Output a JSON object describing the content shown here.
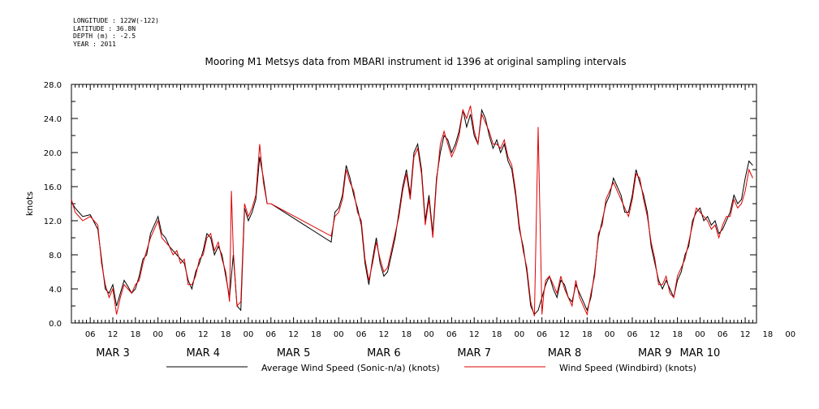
{
  "meta": [
    "LONGITUDE : 122W(-122)",
    "LATITUDE : 36.8N",
    "DEPTH (m) : -2.5",
    "YEAR : 2011"
  ],
  "chart_data": {
    "type": "line",
    "title": "Mooring M1 Metsys data from MBARI instrument id 1396 at original sampling intervals",
    "ylabel": "knots",
    "xlabel": "",
    "ylim": [
      0,
      28
    ],
    "yticks": [
      "0.0",
      "4.0",
      "8.0",
      "12.0",
      "16.0",
      "20.0",
      "24.0",
      "28.0"
    ],
    "xlim_hours": [
      1,
      183
    ],
    "x_unit": "hours since 00:00 MAR 3 2011",
    "hour_ticks": [
      "06",
      "12",
      "18",
      "00",
      "06",
      "12",
      "18",
      "00",
      "06",
      "12",
      "18",
      "00",
      "06",
      "12",
      "18",
      "00",
      "06",
      "12",
      "18",
      "00",
      "06",
      "12",
      "18",
      "00",
      "06",
      "12",
      "18",
      "00",
      "06",
      "12",
      "18",
      "00"
    ],
    "day_labels": [
      "MAR 3",
      "MAR 4",
      "MAR 5",
      "MAR 6",
      "MAR 7",
      "MAR 8",
      "MAR 9",
      "MAR 10"
    ],
    "grid": false,
    "legend_position": "bottom",
    "series": [
      {
        "name": "Average Wind Speed (Sonic-n/a) (knots)",
        "color": "#000000",
        "x": [
          1,
          2,
          4,
          6,
          8,
          9,
          10,
          11,
          12,
          13,
          14,
          15,
          16,
          17,
          18,
          19,
          20,
          21,
          22,
          24,
          25,
          26,
          27,
          28,
          29,
          30,
          31,
          32,
          33,
          34,
          35,
          36,
          37,
          38,
          39,
          40,
          41,
          42,
          43,
          44,
          45,
          46,
          47,
          48,
          49,
          50,
          51,
          52,
          53,
          54,
          70,
          71,
          72,
          73,
          74,
          75,
          76,
          77,
          78,
          79,
          80,
          81,
          82,
          83,
          84,
          85,
          86,
          87,
          88,
          89,
          90,
          91,
          92,
          93,
          94,
          95,
          96,
          97,
          98,
          99,
          100,
          101,
          102,
          103,
          104,
          105,
          106,
          107,
          108,
          109,
          110,
          111,
          112,
          113,
          114,
          115,
          116,
          117,
          118,
          119,
          120,
          121,
          122,
          123,
          124,
          125,
          126,
          127,
          128,
          129,
          130,
          131,
          132,
          133,
          134,
          135,
          136,
          137,
          138,
          139,
          140,
          141,
          142,
          143,
          144,
          145,
          146,
          147,
          148,
          149,
          150,
          151,
          152,
          153,
          154,
          155,
          156,
          157,
          158,
          159,
          160,
          161,
          162,
          163,
          164,
          165,
          166,
          167,
          168,
          169,
          170,
          171,
          172,
          173,
          174,
          175,
          176,
          177,
          178,
          179,
          180,
          181,
          182
        ],
        "values": [
          14.2,
          13.5,
          12.5,
          12.7,
          11.0,
          7.5,
          4.0,
          3.5,
          4.5,
          2.0,
          3.5,
          5.0,
          4.3,
          3.5,
          4.0,
          5.5,
          7.5,
          8.0,
          10.5,
          12.5,
          10.5,
          10.0,
          9.0,
          8.5,
          8.0,
          7.5,
          7.0,
          5.0,
          4.0,
          6.0,
          7.0,
          8.5,
          10.5,
          10.0,
          8.0,
          9.0,
          8.0,
          5.5,
          3.0,
          8.0,
          2.0,
          1.5,
          13.5,
          12.0,
          13.0,
          14.5,
          19.5,
          17.0,
          14.0,
          14.0,
          9.5,
          13.0,
          13.5,
          15.0,
          18.5,
          17.0,
          15.0,
          13.5,
          11.5,
          7.0,
          4.5,
          7.5,
          10.0,
          7.0,
          5.5,
          6.0,
          8.0,
          10.0,
          13.0,
          16.0,
          18.0,
          15.0,
          20.0,
          21.0,
          18.0,
          12.0,
          15.0,
          10.5,
          17.0,
          20.0,
          22.0,
          21.5,
          20.0,
          21.0,
          22.5,
          25.0,
          23.0,
          24.5,
          22.0,
          21.0,
          25.0,
          24.0,
          22.0,
          20.5,
          21.5,
          20.0,
          21.0,
          19.0,
          18.0,
          15.0,
          11.0,
          9.0,
          6.0,
          2.0,
          1.0,
          1.5,
          3.0,
          4.5,
          5.5,
          4.0,
          3.0,
          5.0,
          4.5,
          3.0,
          2.5,
          4.5,
          3.5,
          2.5,
          1.5,
          3.0,
          6.0,
          10.0,
          12.0,
          14.0,
          15.0,
          17.0,
          16.0,
          15.0,
          13.0,
          13.0,
          15.0,
          18.0,
          16.5,
          15.0,
          13.0,
          9.0,
          7.0,
          5.0,
          4.0,
          5.0,
          4.0,
          3.0,
          5.0,
          6.0,
          8.0,
          9.0,
          12.0,
          13.0,
          13.5,
          12.0,
          12.5,
          11.5,
          12.0,
          10.5,
          11.0,
          12.0,
          13.0,
          15.0,
          14.0,
          14.5,
          17.0,
          19.0,
          18.5
        ]
      },
      {
        "name": "Wind Speed (Windbird) (knots)",
        "color": "#e00000",
        "x": [
          1,
          2,
          4,
          6,
          8,
          9,
          10,
          11,
          12,
          13,
          14,
          15,
          16,
          17,
          18,
          19,
          20,
          21,
          22,
          24,
          25,
          26,
          27,
          28,
          29,
          30,
          31,
          32,
          33,
          34,
          35,
          36,
          37,
          38,
          39,
          40,
          41,
          42,
          43,
          43.5,
          44,
          45,
          46,
          47,
          48,
          49,
          50,
          51,
          52,
          53,
          54,
          70,
          71,
          72,
          73,
          74,
          75,
          76,
          77,
          78,
          79,
          80,
          81,
          82,
          83,
          84,
          85,
          86,
          87,
          88,
          89,
          90,
          91,
          92,
          93,
          94,
          95,
          96,
          97,
          98,
          99,
          100,
          101,
          102,
          103,
          104,
          105,
          106,
          107,
          108,
          109,
          110,
          111,
          112,
          113,
          114,
          115,
          116,
          117,
          118,
          119,
          120,
          121,
          122,
          123,
          124,
          125,
          126,
          126.5,
          127,
          128,
          129,
          130,
          131,
          132,
          133,
          134,
          135,
          136,
          137,
          138,
          139,
          140,
          141,
          142,
          143,
          144,
          145,
          146,
          147,
          148,
          149,
          150,
          151,
          152,
          153,
          154,
          155,
          156,
          157,
          158,
          159,
          160,
          161,
          162,
          163,
          164,
          165,
          166,
          167,
          168,
          169,
          170,
          171,
          172,
          173,
          174,
          175,
          176,
          177,
          178,
          179,
          180,
          181,
          182
        ],
        "values": [
          14.5,
          13.0,
          12.0,
          12.5,
          11.5,
          7.0,
          4.5,
          3.0,
          4.0,
          1.0,
          3.0,
          4.5,
          4.0,
          3.5,
          4.5,
          5.0,
          7.0,
          8.5,
          10.0,
          12.0,
          10.0,
          9.5,
          9.0,
          8.0,
          8.5,
          7.0,
          7.5,
          4.5,
          4.5,
          5.5,
          7.5,
          8.0,
          10.0,
          10.5,
          8.5,
          9.5,
          7.5,
          6.0,
          2.5,
          15.5,
          8.5,
          2.0,
          2.5,
          14.0,
          12.5,
          13.5,
          15.0,
          21.0,
          16.5,
          14.0,
          14.0,
          10.2,
          12.5,
          13.0,
          14.5,
          18.0,
          16.5,
          15.5,
          13.0,
          12.0,
          7.5,
          5.0,
          7.0,
          9.5,
          7.5,
          6.0,
          6.5,
          8.5,
          10.5,
          12.5,
          15.5,
          17.5,
          14.5,
          19.5,
          20.5,
          17.5,
          11.5,
          14.5,
          10.0,
          16.5,
          21.0,
          22.5,
          21.0,
          19.5,
          20.5,
          22.0,
          25.0,
          24.0,
          25.5,
          22.5,
          21.0,
          24.5,
          23.5,
          22.5,
          21.0,
          21.0,
          20.5,
          21.5,
          19.5,
          18.5,
          15.5,
          11.5,
          8.5,
          6.5,
          2.5,
          0.8,
          23.0,
          1.0,
          3.5,
          5.0,
          5.5,
          4.5,
          3.5,
          5.5,
          4.0,
          3.0,
          2.0,
          5.0,
          3.0,
          2.0,
          1.0,
          3.5,
          5.5,
          10.5,
          11.5,
          14.5,
          15.5,
          16.5,
          15.5,
          14.5,
          13.5,
          12.5,
          14.5,
          17.5,
          17.0,
          14.5,
          12.5,
          9.5,
          7.5,
          4.5,
          4.5,
          5.5,
          3.5,
          3.0,
          5.5,
          6.5,
          7.5,
          9.5,
          11.5,
          13.5,
          13.0,
          12.5,
          12.0,
          11.0,
          11.5,
          10.0,
          11.5,
          12.5,
          12.5,
          14.5,
          13.5,
          14.0,
          15.5,
          18.0,
          17.0
        ]
      }
    ]
  }
}
